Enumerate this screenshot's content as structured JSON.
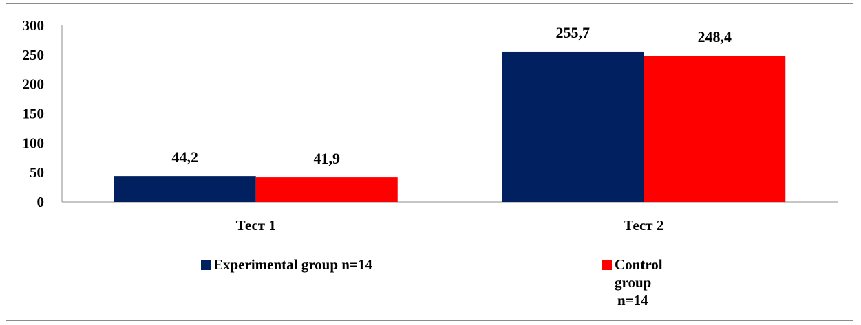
{
  "chart_data": {
    "type": "bar",
    "categories": [
      "Тест  1",
      "Тест  2"
    ],
    "series": [
      {
        "name": "Experimental group  n=14",
        "legend_lines": [
          "Experimental group  n=14"
        ],
        "values": [
          44.2,
          255.7
        ],
        "labels": [
          "44,2",
          "255,7"
        ],
        "color": "#002060"
      },
      {
        "name": "Control group n=14",
        "legend_lines": [
          "Control",
          "group",
          "n=14"
        ],
        "values": [
          41.9,
          248.4
        ],
        "labels": [
          "41,9",
          "248,4"
        ],
        "color": "#ff0000"
      }
    ],
    "yticks": [
      "0",
      "50",
      "100",
      "150",
      "200",
      "250",
      "300"
    ],
    "ylim": [
      0,
      300
    ],
    "title": "",
    "xlabel": "",
    "ylabel": "",
    "grid": false,
    "legend_position": "bottom"
  }
}
